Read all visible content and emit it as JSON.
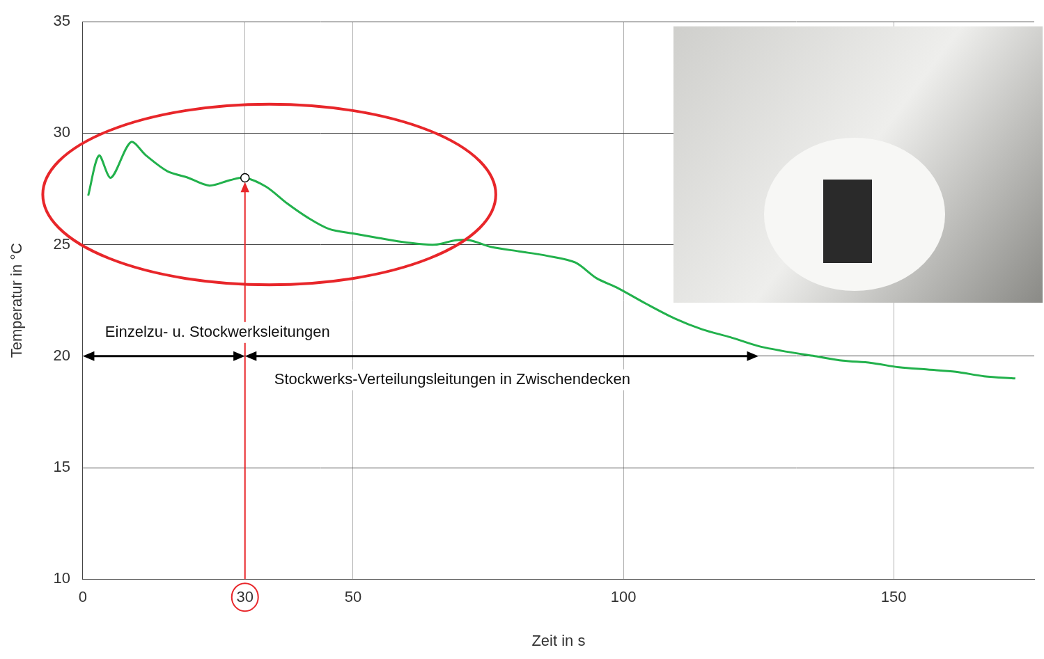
{
  "chart_data": {
    "type": "line",
    "x_label": "Zeit in s",
    "y_label": "Temperatur in °C",
    "x": [
      1,
      3,
      5.2,
      8.9,
      11.7,
      15.6,
      19.5,
      23.4,
      27.3,
      30,
      33.9,
      37.8,
      41.7,
      45.6,
      50,
      54.7,
      59.9,
      65.1,
      69,
      71.6,
      75.5,
      80.7,
      85.9,
      91.1,
      95,
      99,
      104.2,
      109.4,
      114.6,
      119.8,
      125,
      130.2,
      135.4,
      140.6,
      145.8,
      151,
      156.3,
      161.5,
      166.7,
      172.5
    ],
    "values": [
      27.2,
      29.0,
      28.0,
      29.6,
      29.0,
      28.3,
      28.0,
      27.65,
      27.9,
      28.0,
      27.6,
      26.85,
      26.2,
      25.7,
      25.5,
      25.3,
      25.1,
      25.0,
      25.2,
      25.2,
      24.9,
      24.7,
      24.5,
      24.2,
      23.5,
      23.05,
      22.35,
      21.7,
      21.2,
      20.85,
      20.45,
      20.2,
      20.0,
      19.8,
      19.7,
      19.5,
      19.4,
      19.3,
      19.1,
      19.0
    ],
    "color": "#22b14c",
    "xlim": [
      0,
      176
    ],
    "xticks": [
      0,
      30,
      50,
      100,
      150
    ],
    "ylim": [
      10,
      35
    ],
    "yticks": [
      10,
      15,
      20,
      25,
      30,
      35
    ],
    "grid": true,
    "annotations": [
      {
        "type": "ellipse",
        "x": [
          -7.4,
          76.4
        ],
        "y": [
          23.2,
          31.3
        ],
        "color": "#e8262a"
      },
      {
        "type": "arrow",
        "x": 30,
        "y": [
          10,
          28
        ],
        "color": "#e8262a"
      },
      {
        "type": "circle_tick",
        "x": 30,
        "color": "#e8262a"
      },
      {
        "type": "range_arrow",
        "text": "Einzelzu- u. Stockwerksleitungen",
        "x": [
          0,
          30
        ],
        "y": 20
      },
      {
        "type": "range_arrow",
        "text": "Stockwerks-Verteilungsleitungen in Zwischendecken",
        "x": [
          30,
          125
        ],
        "y": 20
      }
    ]
  }
}
